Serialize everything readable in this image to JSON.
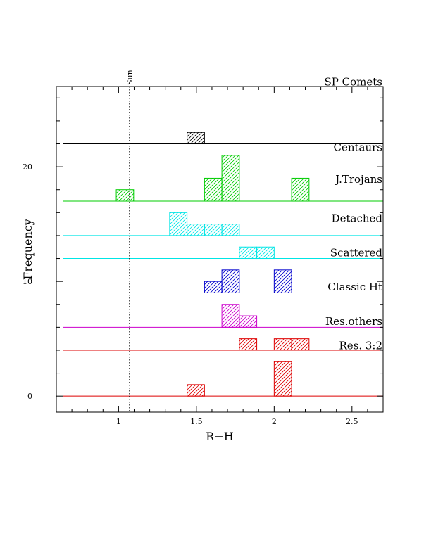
{
  "chart_data": {
    "type": "histogram",
    "xlabel": "R−H",
    "ylabel": "Frequency",
    "xlim": [
      0.6,
      2.7
    ],
    "ylim": [
      -1.4,
      27
    ],
    "bin_width": 0.112,
    "xticks": [
      {
        "value": 1,
        "label": "1"
      },
      {
        "value": 1.5,
        "label": "1.5"
      },
      {
        "value": 2,
        "label": "2"
      },
      {
        "value": 2.5,
        "label": "2.5"
      }
    ],
    "yticks": [
      {
        "value": 0,
        "label": "0"
      },
      {
        "value": 10,
        "label": "10"
      },
      {
        "value": 20,
        "label": "20"
      }
    ],
    "reference_line": {
      "x": 1.07,
      "label": "Sun",
      "style": "dotted"
    },
    "series": [
      {
        "name": "SP Comets",
        "color": "#000000",
        "baseline": 22,
        "bars": [
          {
            "x0": 1.44,
            "x1": 1.552,
            "count": 1
          }
        ]
      },
      {
        "name": "Centaurs",
        "color": "#00cc00",
        "baseline": 17,
        "bars": [
          {
            "x0": 0.985,
            "x1": 1.097,
            "count": 1
          },
          {
            "x0": 1.552,
            "x1": 1.664,
            "count": 2
          },
          {
            "x0": 1.664,
            "x1": 1.776,
            "count": 4
          },
          {
            "x0": 2.112,
            "x1": 2.224,
            "count": 2
          }
        ]
      },
      {
        "name": "J.Trojans",
        "color": "#00e5e5",
        "baseline": 14,
        "bars": [
          {
            "x0": 1.328,
            "x1": 1.44,
            "count": 2
          },
          {
            "x0": 1.44,
            "x1": 1.552,
            "count": 1
          },
          {
            "x0": 1.552,
            "x1": 1.664,
            "count": 1
          },
          {
            "x0": 1.664,
            "x1": 1.776,
            "count": 1
          }
        ]
      },
      {
        "name": "Detached",
        "color": "#00e5e5",
        "baseline": 12,
        "bars": [
          {
            "x0": 1.776,
            "x1": 1.888,
            "count": 1
          },
          {
            "x0": 1.888,
            "x1": 2.0,
            "count": 1
          }
        ]
      },
      {
        "name": "Scattered",
        "color": "#0000cc",
        "baseline": 9,
        "bars": [
          {
            "x0": 1.552,
            "x1": 1.664,
            "count": 1
          },
          {
            "x0": 1.664,
            "x1": 1.776,
            "count": 2
          },
          {
            "x0": 2.0,
            "x1": 2.112,
            "count": 2
          }
        ]
      },
      {
        "name": "Classic Ht",
        "color": "#cc00cc",
        "baseline": 6,
        "bars": [
          {
            "x0": 1.664,
            "x1": 1.776,
            "count": 2
          },
          {
            "x0": 1.776,
            "x1": 1.888,
            "count": 1
          }
        ]
      },
      {
        "name": "Res.others",
        "color": "#dd0000",
        "baseline": 4,
        "bars": [
          {
            "x0": 1.776,
            "x1": 1.888,
            "count": 1
          },
          {
            "x0": 2.0,
            "x1": 2.112,
            "count": 1
          },
          {
            "x0": 2.112,
            "x1": 2.224,
            "count": 1
          }
        ]
      },
      {
        "name": "Res. 3:2",
        "color": "#dd0000",
        "baseline": 0,
        "bars": [
          {
            "x0": 1.44,
            "x1": 1.552,
            "count": 1
          },
          {
            "x0": 2.0,
            "x1": 2.112,
            "count": 3
          }
        ]
      }
    ]
  }
}
